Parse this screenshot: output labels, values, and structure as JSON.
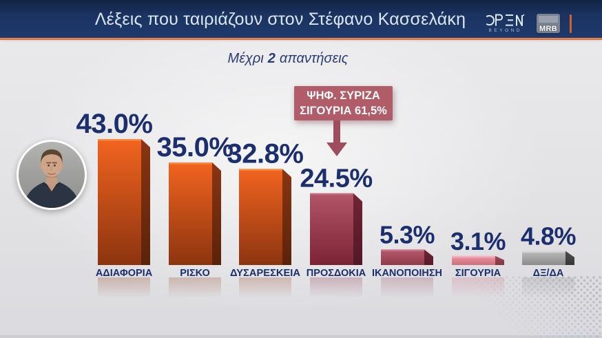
{
  "header": {
    "title": "Λέξεις που ταιριάζουν στον Στέφανο Κασσελάκη",
    "open_logo": {
      "text": "OPEN",
      "subtext": "BEYOND"
    },
    "mrb_logo_text": "MRB",
    "colors": {
      "bar_bg": "#1e3a6c",
      "accent_line": "#d96331",
      "title_text": "#dbe7f4"
    }
  },
  "subtitle": {
    "prefix": "Μέχρι",
    "bold_number": "2",
    "suffix": "απαντήσεις"
  },
  "callout": {
    "line1": "ΨΗΦ. ΣΥΡΙΖΑ",
    "line2": "ΣΙΓΟΥΡΙΑ 61,5%",
    "bg_color": "#b15c69",
    "arrow_color": "#9e4d5c",
    "target_category": "ΠΡΟΣΔΟΚΙΑ"
  },
  "chart_data": {
    "type": "bar",
    "title": "Λέξεις που ταιριάζουν στον Στέφανο Κασσελάκη",
    "subtitle": "Μέχρι 2 απαντήσεις",
    "categories": [
      "ΑΔΙΑΦΟΡΙΑ",
      "ΡΙΣΚΟ",
      "ΔΥΣΑΡΕΣΚΕΙΑ",
      "ΠΡΟΣΔΟΚΙΑ",
      "ΙΚΑΝΟΠΟΙΗΣΗ",
      "ΣΙΓΟΥΡΙΑ",
      "ΔΞ/ΔΑ"
    ],
    "values": [
      43.0,
      35.0,
      32.8,
      24.5,
      5.3,
      3.1,
      4.8
    ],
    "value_labels": [
      "43.0%",
      "35.0%",
      "32.8%",
      "24.5%",
      "5.3%",
      "3.1%",
      "4.8%"
    ],
    "ylim": [
      0,
      45
    ],
    "grid": false,
    "legend": false,
    "value_label_position": "above",
    "annotation": {
      "text": "ΨΗΦ. ΣΥΡΙΖΑ ΣΙΓΟΥΡΙΑ 61,5%",
      "target_category": "ΠΡΟΣΔΟΚΙΑ"
    },
    "value_color": "#1b2e6d",
    "label_color": "#1b2e6d",
    "bar_styles": [
      {
        "top": "#f2641f",
        "bottom": "#8c3410",
        "side_top": "#8a3512",
        "side_bottom": "#5a2309",
        "cap": "#f78d45"
      },
      {
        "top": "#f2641f",
        "bottom": "#8c3410",
        "side_top": "#8a3512",
        "side_bottom": "#5a2309",
        "cap": "#f78d45"
      },
      {
        "top": "#f2641f",
        "bottom": "#8c3410",
        "side_top": "#8a3512",
        "side_bottom": "#5a2309",
        "cap": "#f78d45"
      },
      {
        "top": "#b25568",
        "bottom": "#7c2336",
        "side_top": "#712434",
        "side_bottom": "#511827",
        "cap": "#c4707f"
      },
      {
        "top": "#b65a6c",
        "bottom": "#8f3b4d",
        "side_top": "#6e2534",
        "side_bottom": "#561c29",
        "cap": "#c87886"
      },
      {
        "top": "#ec95a2",
        "bottom": "#cf6e7e",
        "side_top": "#9c4856",
        "side_bottom": "#823844",
        "cap": "#f5b3bd"
      },
      {
        "top": "#bcbcbc",
        "bottom": "#8a8a8a",
        "side_top": "#4d4d4d",
        "side_bottom": "#383838",
        "cap": "#d6d6d6"
      }
    ]
  }
}
